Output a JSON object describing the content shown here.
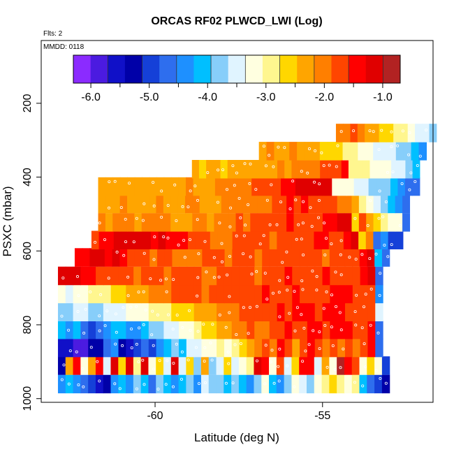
{
  "chart_data": {
    "type": "heatmap",
    "title": "ORCAS RF02 PLWCD_LWI (Log)",
    "subtitle_flights": "Flts: 2",
    "subtitle_date": "MMDD: 0118",
    "xlabel": "Latitude (deg N)",
    "ylabel": "PSXC (mbar)",
    "xlim": [
      -63.4,
      -51.7
    ],
    "ylim": [
      1010,
      30
    ],
    "y_reversed": true,
    "x_ticks": [
      -60,
      -55
    ],
    "x_tick_labels": [
      "-60",
      "-55"
    ],
    "y_ticks": [
      200,
      400,
      600,
      800,
      1000
    ],
    "y_tick_labels": [
      "200",
      "400",
      "600",
      "800",
      "1000"
    ],
    "grid": false,
    "colorbar": {
      "placement": "top-inside",
      "range": [
        -6.3,
        -0.7
      ],
      "ticks": [
        -6.0,
        -5.0,
        -4.0,
        -3.0,
        -2.0,
        -1.0
      ],
      "tick_labels": [
        "-6.0",
        "-5.0",
        "-4.0",
        "-3.0",
        "-2.0",
        "-1.0"
      ],
      "colors": [
        "#8B2BFF",
        "#4B1BE0",
        "#1010C8",
        "#0000A8",
        "#1540D8",
        "#2E6EEE",
        "#1E90FF",
        "#00BFFF",
        "#87CEFA",
        "#E0F4FF",
        "#FFFFE0",
        "#FFF68F",
        "#FFD700",
        "#FFA500",
        "#FF7F00",
        "#FF4500",
        "#FF0000",
        "#E00000",
        "#B22222"
      ]
    },
    "levels": [
      {
        "p": 960,
        "x0": -62.9,
        "x1": -53.0,
        "values": [
          -4.4,
          -4.2,
          -4.5,
          -4.6,
          -4.9,
          -5.6,
          -5.2,
          -4.4,
          -4.2,
          -4.5,
          -3.7,
          -4.1,
          -4.6,
          -3.8,
          -4.2,
          -4.4,
          -4.1,
          -3.9,
          -4.4,
          -3.4,
          -3.8,
          -3.9,
          -4.2,
          -3.8,
          -4.1,
          -4.3,
          -3.7,
          -3.3,
          -4.2,
          -4.5,
          -3.8,
          -3.2,
          -3.4,
          -3.9,
          -3.1,
          -2.9,
          -2.5,
          -3.0,
          -3.3,
          -2.8,
          -4.1,
          -4.6,
          -4.9,
          -5.2
        ]
      },
      {
        "p": 910,
        "x0": -62.9,
        "x1": -53.0,
        "values": [
          -5.3,
          -2.4,
          -1.3,
          -3.2,
          -2.3,
          -1.3,
          -3.4,
          -1.2,
          -2.6,
          -1.1,
          -2.8,
          -1.0,
          -3.1,
          -2.5,
          -3.5,
          -1.1,
          -3.4,
          -2.7,
          -3.7,
          -2.2,
          -3.9,
          -3.4,
          -2.5,
          -3.6,
          -3.3,
          -3.0,
          -1.0,
          -1.3,
          -3.2,
          -1.6,
          -3.5,
          -2.6,
          -1.3,
          -1.5,
          -3.4,
          -2.2,
          -3.1,
          -0.8,
          -1.4,
          -1.7,
          -3.1,
          -2.6,
          -3.3,
          -5.0
        ]
      },
      {
        "p": 862,
        "x0": -62.9,
        "x1": -53.2,
        "values": [
          -5.6,
          -5.5,
          -5.8,
          -5.9,
          -5.4,
          -5.2,
          -4.7,
          -4.3,
          -5.3,
          -5.6,
          -5.1,
          -4.8,
          -4.9,
          -4.3,
          -4.1,
          -3.7,
          -4.2,
          -3.6,
          -3.4,
          -3.1,
          -3.3,
          -2.8,
          -3.2,
          -2.9,
          -2.6,
          -2.4,
          -2.1,
          -1.7,
          -1.9,
          -1.5,
          -1.8,
          -2.2,
          -1.6,
          -1.3,
          -1.7,
          -1.9,
          -1.8,
          -2.1,
          -1.6,
          -2.0,
          -1.7,
          -1.5,
          -4.8
        ]
      },
      {
        "p": 813,
        "x0": -62.9,
        "x1": -53.2,
        "values": [
          -4.2,
          -4.3,
          -4.1,
          -4.6,
          -4.9,
          -4.7,
          -4.5,
          -4.2,
          -4.1,
          -4.4,
          -4.3,
          -4.0,
          -3.9,
          -3.7,
          -3.6,
          -3.4,
          -3.2,
          -3.1,
          -2.9,
          -2.7,
          -2.6,
          -2.4,
          -2.2,
          -2.0,
          -1.9,
          -1.8,
          -1.9,
          -2.0,
          -1.8,
          -1.6,
          -1.5,
          -1.7,
          -1.6,
          -1.4,
          -1.5,
          -1.6,
          -1.4,
          -1.5,
          -1.5,
          -1.6,
          -1.7,
          -1.5,
          -4.6
        ]
      },
      {
        "p": 765,
        "x0": -62.9,
        "x1": -53.2,
        "values": [
          -3.8,
          -3.9,
          -3.6,
          -3.5,
          -3.7,
          -3.8,
          -3.6,
          -3.4,
          -3.5,
          -3.3,
          -3.2,
          -3.1,
          -3.0,
          -2.9,
          -2.8,
          -2.7,
          -2.6,
          -2.5,
          -2.4,
          -2.3,
          -2.2,
          -2.1,
          -2.0,
          -1.9,
          -1.8,
          -1.7,
          -1.8,
          -1.7,
          -1.6,
          -1.5,
          -1.6,
          -1.5,
          -1.4,
          -1.5,
          -1.6,
          -1.5,
          -1.4,
          -1.5,
          -1.6,
          -1.7,
          -1.6,
          -1.8,
          -3.6
        ]
      },
      {
        "p": 716,
        "x0": -62.9,
        "x1": -53.2,
        "values": [
          -3.3,
          -3.4,
          -3.2,
          -3.1,
          -2.9,
          -2.8,
          -3.0,
          -2.7,
          -2.5,
          -2.4,
          -2.3,
          -2.2,
          -2.1,
          -2.0,
          -1.9,
          -1.8,
          -1.8,
          -1.7,
          -1.8,
          -1.9,
          -1.8,
          -1.7,
          -1.6,
          -1.7,
          -1.8,
          -1.7,
          -1.6,
          -1.5,
          -1.6,
          -1.7,
          -1.6,
          -1.5,
          -1.6,
          -1.7,
          -1.8,
          -1.6,
          -1.5,
          -1.4,
          -1.5,
          -1.6,
          -1.7,
          -1.6,
          -4.3
        ]
      },
      {
        "p": 667,
        "x0": -62.9,
        "x1": -53.2,
        "values": [
          -1.1,
          -1.2,
          -1.0,
          -1.3,
          -1.4,
          -1.6,
          -1.8,
          -1.7,
          -1.6,
          -1.8,
          -1.9,
          -1.7,
          -1.6,
          -1.8,
          -1.9,
          -1.8,
          -1.7,
          -1.6,
          -1.8,
          -1.9,
          -2.0,
          -1.8,
          -1.7,
          -1.6,
          -1.7,
          -1.8,
          -1.9,
          -1.7,
          -1.8,
          -1.6,
          -1.5,
          -1.6,
          -1.7,
          -1.8,
          -1.6,
          -1.5,
          -1.6,
          -1.7,
          -1.6,
          -1.8,
          -1.3,
          -1.1,
          -4.7
        ]
      },
      {
        "p": 617,
        "x0": -62.4,
        "x1": -53.0,
        "values": [
          -1.4,
          -1.3,
          -1.2,
          -1.0,
          -1.3,
          -1.2,
          -1.5,
          -1.6,
          -1.7,
          -1.8,
          -1.9,
          -1.8,
          -1.7,
          -1.9,
          -2.0,
          -2.1,
          -1.9,
          -1.8,
          -1.7,
          -1.8,
          -1.9,
          -1.8,
          -1.7,
          -1.8,
          -1.9,
          -1.8,
          -1.7,
          -1.6,
          -1.8,
          -1.7,
          -1.6,
          -1.7,
          -1.8,
          -1.9,
          -1.7,
          -1.6,
          -1.7,
          -1.8,
          -1.4,
          -1.2,
          -4.0,
          -4.8
        ]
      },
      {
        "p": 570,
        "x0": -61.9,
        "x1": -52.6,
        "values": [
          -1.6,
          -1.4,
          -1.3,
          -1.2,
          -1.1,
          -1.0,
          -1.1,
          -1.2,
          -1.3,
          -1.2,
          -1.3,
          -1.4,
          -1.5,
          -1.6,
          -1.7,
          -1.8,
          -1.9,
          -2.0,
          -1.9,
          -1.8,
          -1.7,
          -1.6,
          -1.7,
          -1.8,
          -1.9,
          -1.8,
          -1.7,
          -1.8,
          -1.7,
          -1.6,
          -1.5,
          -1.4,
          -1.6,
          -1.8,
          -1.5,
          -1.2,
          -2.6,
          -1.9,
          -4.6,
          -4.4,
          -4.9,
          -5.1
        ]
      },
      {
        "p": 522,
        "x0": -61.7,
        "x1": -52.4,
        "values": [
          -2.0,
          -2.2,
          -2.1,
          -1.9,
          -2.0,
          -2.2,
          -2.1,
          -2.0,
          -2.1,
          -1.9,
          -2.2,
          -2.3,
          -2.2,
          -2.0,
          -2.1,
          -2.2,
          -2.0,
          -1.9,
          -2.0,
          -1.8,
          -1.9,
          -1.7,
          -1.8,
          -1.6,
          -1.7,
          -1.6,
          -1.5,
          -1.6,
          -1.7,
          -1.8,
          -1.7,
          -1.5,
          -1.4,
          -1.2,
          -1.0,
          -2.6,
          -1.7,
          -2.4,
          -2.7,
          -2.9,
          -3.1,
          -3.3,
          -4.7
        ]
      },
      {
        "p": 472,
        "x0": -61.7,
        "x1": -52.4,
        "values": [
          -2.2,
          -2.3,
          -2.2,
          -2.1,
          -2.2,
          -2.3,
          -2.4,
          -2.2,
          -2.1,
          -2.2,
          -2.3,
          -2.2,
          -2.1,
          -2.0,
          -2.2,
          -2.3,
          -2.2,
          -2.1,
          -2.0,
          -1.9,
          -2.0,
          -2.1,
          -2.0,
          -1.9,
          -1.7,
          -1.6,
          -1.4,
          -1.6,
          -1.5,
          -1.6,
          -1.7,
          -1.8,
          -1.7,
          -1.9,
          -2.1,
          -2.3,
          -3.0,
          -3.3,
          -3.6,
          -3.9,
          -4.2,
          -4.4,
          -4.6
        ]
      },
      {
        "p": 425,
        "x0": -61.7,
        "x1": -52.1,
        "values": [
          -2.3,
          -2.4,
          -2.3,
          -2.2,
          -2.3,
          -2.4,
          -2.3,
          -2.2,
          -2.3,
          -2.4,
          -2.3,
          -2.2,
          -2.1,
          -2.2,
          -2.3,
          -2.2,
          -2.1,
          -2.0,
          -2.1,
          -2.0,
          -1.9,
          -1.8,
          -1.7,
          -1.8,
          -1.6,
          -1.4,
          -1.3,
          -1.2,
          -1.1,
          -1.0,
          -1.1,
          -1.2,
          -3.1,
          -3.2,
          -3.3,
          -3.4,
          -3.6,
          -3.7,
          -3.8,
          -3.9,
          -4.1,
          -4.4,
          -4.6,
          -4.7
        ]
      },
      {
        "p": 378,
        "x0": -58.9,
        "x1": -52.1,
        "values": [
          -2.4,
          -2.5,
          -2.4,
          -2.3,
          -2.5,
          -2.4,
          -2.3,
          -2.4,
          -2.3,
          -2.2,
          -2.3,
          -2.2,
          -2.1,
          -2.2,
          -2.1,
          -2.0,
          -1.9,
          -1.9,
          -1.8,
          -1.7,
          -1.6,
          -1.5,
          -2.8,
          -2.9,
          -3.0,
          -3.1,
          -3.2,
          -3.3,
          -3.4,
          -3.5,
          -3.7,
          -4.2
        ]
      },
      {
        "p": 329,
        "x0": -56.9,
        "x1": -51.9,
        "values": [
          -2.2,
          -2.1,
          -2.3,
          -2.2,
          -2.1,
          -2.3,
          -2.4,
          -2.3,
          -2.5,
          -2.6,
          -2.7,
          -2.8,
          -2.9,
          -3.1,
          -3.3,
          -3.5,
          -3.4,
          -3.6,
          -3.7,
          -3.9,
          -4.1,
          -4.4
        ]
      },
      {
        "p": 280,
        "x0": -54.6,
        "x1": -51.6,
        "values": [
          -2.0,
          -1.9,
          -1.8,
          -2.0,
          -2.2,
          -2.4,
          -2.6,
          -2.7,
          -2.9,
          -3.0,
          -3.2,
          -3.4,
          -3.6,
          -3.8
        ]
      }
    ]
  }
}
